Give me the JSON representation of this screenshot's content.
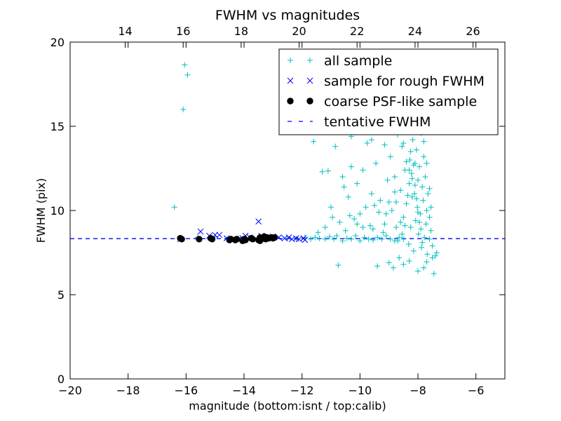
{
  "chart_data": {
    "type": "scatter",
    "title": "FWHM vs magnitudes",
    "xlabel": "magnitude (bottom:isnt / top:calib)",
    "ylabel": "FWHM (pix)",
    "xlim": [
      -20,
      -5
    ],
    "ylim": [
      0,
      20
    ],
    "x_ticks": [
      "−20",
      "−18",
      "−16",
      "−14",
      "−12",
      "−10",
      "−8",
      "−6"
    ],
    "x_tick_values": [
      -20,
      -18,
      -16,
      -14,
      -12,
      -10,
      -8,
      -6
    ],
    "y_ticks": [
      "0",
      "5",
      "10",
      "15",
      "20"
    ],
    "y_tick_values": [
      0,
      5,
      10,
      15,
      20
    ],
    "top_axis": {
      "ticks": [
        "14",
        "16",
        "18",
        "20",
        "22",
        "24",
        "26"
      ],
      "values": [
        14,
        16,
        18,
        20,
        22,
        24,
        26
      ],
      "offset": 32.1
    },
    "grid": false,
    "legend_position": "upper-right",
    "colors": {
      "all_sample": "#00bfbf",
      "rough": "#0000ff",
      "coarse": "#000000",
      "tentative": "#0000ff"
    },
    "series": [
      {
        "name": "all sample",
        "marker": "plus",
        "points": [
          [
            -16.4,
            10.2
          ],
          [
            -16.1,
            16.0
          ],
          [
            -16.05,
            18.65
          ],
          [
            -15.95,
            18.05
          ],
          [
            -16.2,
            8.3
          ],
          [
            -15.6,
            8.4
          ],
          [
            -15.0,
            8.45
          ],
          [
            -14.6,
            8.3
          ],
          [
            -14.2,
            8.35
          ],
          [
            -13.8,
            8.35
          ],
          [
            -13.3,
            8.4
          ],
          [
            -12.9,
            8.45
          ],
          [
            -12.5,
            8.35
          ],
          [
            -12.2,
            8.3
          ],
          [
            -11.9,
            8.4
          ],
          [
            -11.7,
            8.3
          ],
          [
            -11.55,
            8.4
          ],
          [
            -11.4,
            8.35
          ],
          [
            -11.2,
            8.3
          ],
          [
            -11.05,
            8.45
          ],
          [
            -10.9,
            8.3
          ],
          [
            -10.8,
            8.5
          ],
          [
            -10.6,
            8.2
          ],
          [
            -10.45,
            8.35
          ],
          [
            -10.3,
            8.3
          ],
          [
            -10.15,
            8.5
          ],
          [
            -10.0,
            8.2
          ],
          [
            -9.85,
            8.4
          ],
          [
            -9.7,
            8.3
          ],
          [
            -9.55,
            8.25
          ],
          [
            -9.4,
            8.4
          ],
          [
            -9.25,
            8.3
          ],
          [
            -9.1,
            8.5
          ],
          [
            -8.95,
            8.3
          ],
          [
            -8.8,
            8.2
          ],
          [
            -8.65,
            8.4
          ],
          [
            -8.5,
            8.3
          ],
          [
            -11.6,
            14.1
          ],
          [
            -11.3,
            12.3
          ],
          [
            -11.1,
            12.35
          ],
          [
            -11.0,
            10.2
          ],
          [
            -10.85,
            13.8
          ],
          [
            -10.75,
            6.75
          ],
          [
            -10.6,
            12.0
          ],
          [
            -10.55,
            11.4
          ],
          [
            -10.4,
            10.8
          ],
          [
            -10.3,
            12.6
          ],
          [
            -10.2,
            9.5
          ],
          [
            -10.1,
            11.6
          ],
          [
            -10.0,
            9.8
          ],
          [
            -9.9,
            12.4
          ],
          [
            -9.8,
            10.2
          ],
          [
            -9.75,
            14.0
          ],
          [
            -9.6,
            11.0
          ],
          [
            -9.55,
            8.9
          ],
          [
            -9.45,
            12.8
          ],
          [
            -9.4,
            6.7
          ],
          [
            -9.3,
            10.6
          ],
          [
            -9.2,
            15.2
          ],
          [
            -9.15,
            9.2
          ],
          [
            -9.05,
            11.8
          ],
          [
            -8.95,
            13.2
          ],
          [
            -8.9,
            10.0
          ],
          [
            -8.85,
            6.6
          ],
          [
            -8.8,
            12.0
          ],
          [
            -8.75,
            9.0
          ],
          [
            -8.7,
            14.5
          ],
          [
            -8.65,
            7.2
          ],
          [
            -8.6,
            11.2
          ],
          [
            -8.55,
            13.8
          ],
          [
            -8.5,
            9.6
          ],
          [
            -8.45,
            12.4
          ],
          [
            -8.4,
            10.4
          ],
          [
            -8.35,
            15.8
          ],
          [
            -8.32,
            8.0
          ],
          [
            -8.3,
            11.6
          ],
          [
            -8.28,
            13.0
          ],
          [
            -8.25,
            9.0
          ],
          [
            -8.22,
            12.2
          ],
          [
            -8.2,
            10.8
          ],
          [
            -8.18,
            14.2
          ],
          [
            -8.15,
            7.6
          ],
          [
            -8.12,
            11.0
          ],
          [
            -8.1,
            12.8
          ],
          [
            -8.08,
            9.4
          ],
          [
            -8.05,
            13.6
          ],
          [
            -8.02,
            10.2
          ],
          [
            -8.0,
            11.8
          ],
          [
            -7.98,
            8.6
          ],
          [
            -7.95,
            12.6
          ],
          [
            -7.92,
            9.8
          ],
          [
            -7.9,
            14.6
          ],
          [
            -7.88,
            7.8
          ],
          [
            -7.85,
            11.4
          ],
          [
            -7.82,
            10.6
          ],
          [
            -7.8,
            13.2
          ],
          [
            -7.78,
            8.4
          ],
          [
            -7.75,
            12.0
          ],
          [
            -7.72,
            9.2
          ],
          [
            -7.7,
            10.0
          ],
          [
            -7.68,
            7.4
          ],
          [
            -7.65,
            11.0
          ],
          [
            -7.6,
            9.6
          ],
          [
            -7.55,
            8.8
          ],
          [
            -7.5,
            7.2
          ],
          [
            -7.45,
            6.25
          ],
          [
            -7.4,
            7.3
          ],
          [
            -7.35,
            7.5
          ],
          [
            -8.4,
            12.9
          ],
          [
            -8.3,
            12.4
          ],
          [
            -8.2,
            11.9
          ],
          [
            -8.25,
            13.5
          ],
          [
            -8.15,
            12.7
          ],
          [
            -8.1,
            11.5
          ],
          [
            -8.35,
            10.9
          ],
          [
            -8.05,
            10.7
          ],
          [
            -8.0,
            9.9
          ],
          [
            -7.95,
            9.3
          ],
          [
            -7.9,
            8.9
          ],
          [
            -7.85,
            8.1
          ],
          [
            -8.45,
            9.1
          ],
          [
            -8.55,
            8.6
          ],
          [
            -8.6,
            9.3
          ],
          [
            -8.7,
            8.2
          ],
          [
            -8.75,
            10.5
          ],
          [
            -8.8,
            11.1
          ],
          [
            -9.0,
            10.5
          ],
          [
            -9.1,
            9.8
          ],
          [
            -9.2,
            8.7
          ],
          [
            -9.35,
            9.9
          ],
          [
            -9.5,
            10.3
          ],
          [
            -9.65,
            9.1
          ],
          [
            -9.9,
            9.0
          ],
          [
            -10.1,
            9.2
          ],
          [
            -10.35,
            9.7
          ],
          [
            -10.5,
            8.8
          ],
          [
            -10.7,
            9.3
          ],
          [
            -10.95,
            9.6
          ],
          [
            -11.2,
            9.0
          ],
          [
            -11.45,
            8.7
          ],
          [
            -9.8,
            15.0
          ],
          [
            -9.45,
            15.6
          ],
          [
            -9.0,
            15.4
          ],
          [
            -8.6,
            15.9
          ],
          [
            -8.2,
            15.5
          ],
          [
            -7.9,
            15.3
          ],
          [
            -10.3,
            14.4
          ],
          [
            -9.6,
            14.2
          ],
          [
            -9.15,
            13.9
          ],
          [
            -8.9,
            14.8
          ],
          [
            -8.5,
            14.0
          ],
          [
            -8.1,
            14.9
          ],
          [
            -7.8,
            14.1
          ],
          [
            -7.7,
            12.8
          ],
          [
            -7.6,
            11.3
          ],
          [
            -7.55,
            10.2
          ],
          [
            -7.6,
            8.3
          ],
          [
            -7.5,
            7.9
          ],
          [
            -9.0,
            6.9
          ],
          [
            -8.5,
            6.8
          ],
          [
            -8.3,
            7.0
          ],
          [
            -8.0,
            6.4
          ],
          [
            -7.8,
            6.6
          ],
          [
            -7.7,
            6.95
          ],
          [
            -12.1,
            18.7
          ],
          [
            -11.0,
            17.1
          ],
          [
            -10.3,
            18.2
          ],
          [
            -9.5,
            16.8
          ],
          [
            -9.0,
            17.6
          ],
          [
            -8.6,
            16.6
          ],
          [
            -8.3,
            17.4
          ],
          [
            -8.0,
            16.3
          ],
          [
            -7.75,
            16.9
          ],
          [
            -10.6,
            16.2
          ],
          [
            -11.4,
            15.7
          ],
          [
            -12.3,
            16.4
          ]
        ]
      },
      {
        "name": "sample for rough FWHM",
        "marker": "x",
        "points": [
          [
            -16.2,
            8.3
          ],
          [
            -15.5,
            8.75
          ],
          [
            -15.2,
            8.5
          ],
          [
            -15.0,
            8.55
          ],
          [
            -14.85,
            8.55
          ],
          [
            -14.4,
            8.3
          ],
          [
            -14.2,
            8.25
          ],
          [
            -14.05,
            8.35
          ],
          [
            -13.95,
            8.5
          ],
          [
            -13.8,
            8.4
          ],
          [
            -13.5,
            9.35
          ],
          [
            -13.4,
            8.5
          ],
          [
            -13.2,
            8.4
          ],
          [
            -13.0,
            8.45
          ],
          [
            -12.8,
            8.4
          ],
          [
            -12.6,
            8.35
          ],
          [
            -12.45,
            8.4
          ],
          [
            -12.35,
            8.3
          ],
          [
            -12.2,
            8.35
          ],
          [
            -12.1,
            8.3
          ],
          [
            -11.95,
            8.35
          ],
          [
            -11.9,
            8.25
          ],
          [
            -13.6,
            8.3
          ],
          [
            -13.3,
            8.35
          ],
          [
            -14.6,
            8.35
          ]
        ]
      },
      {
        "name": "coarse PSF-like sample",
        "marker": "circle",
        "points": [
          [
            -16.15,
            8.3
          ],
          [
            -16.2,
            8.35
          ],
          [
            -15.55,
            8.3
          ],
          [
            -15.1,
            8.3
          ],
          [
            -15.15,
            8.35
          ],
          [
            -14.5,
            8.25
          ],
          [
            -14.45,
            8.3
          ],
          [
            -14.3,
            8.25
          ],
          [
            -14.25,
            8.3
          ],
          [
            -14.05,
            8.2
          ],
          [
            -14.0,
            8.3
          ],
          [
            -13.95,
            8.25
          ],
          [
            -13.75,
            8.35
          ],
          [
            -13.7,
            8.3
          ],
          [
            -13.5,
            8.25
          ],
          [
            -13.45,
            8.4
          ],
          [
            -13.4,
            8.3
          ],
          [
            -13.35,
            8.4
          ],
          [
            -13.3,
            8.45
          ],
          [
            -13.25,
            8.3
          ],
          [
            -13.2,
            8.4
          ],
          [
            -13.05,
            8.4
          ],
          [
            -13.0,
            8.35
          ],
          [
            -12.95,
            8.4
          ],
          [
            -13.45,
            8.2
          ],
          [
            -13.15,
            8.35
          ]
        ]
      }
    ],
    "tentative_fwhm": 8.33,
    "legend": [
      "all sample",
      "sample for rough FWHM",
      "coarse PSF-like sample",
      "tentative FWHM"
    ]
  }
}
